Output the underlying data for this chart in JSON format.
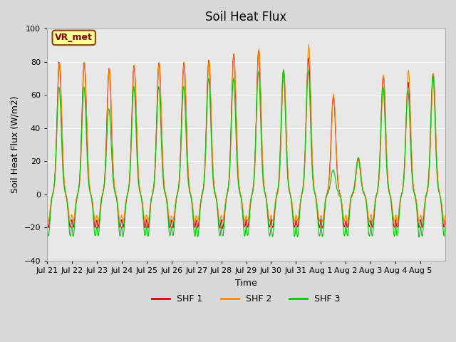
{
  "title": "Soil Heat Flux",
  "xlabel": "Time",
  "ylabel": "Soil Heat Flux (W/m2)",
  "ylim": [
    -40,
    100
  ],
  "yticks": [
    -40,
    -20,
    0,
    20,
    40,
    60,
    80,
    100
  ],
  "fig_bg_color": "#d8d8d8",
  "plot_bg": "#e8e8e8",
  "line_colors": {
    "SHF 1": "#dd0000",
    "SHF 2": "#ff8800",
    "SHF 3": "#00cc00"
  },
  "legend_label": "VR_met",
  "xtick_labels": [
    "Jul 21",
    "Jul 22",
    "Jul 23",
    "Jul 24",
    "Jul 25",
    "Jul 26",
    "Jul 27",
    "Jul 28",
    "Jul 29",
    "Jul 30",
    "Jul 31",
    "Aug 1",
    "Aug 2",
    "Aug 3",
    "Aug 4",
    "Aug 5"
  ],
  "n_days": 16,
  "pts_per_day": 48,
  "day_peaks1": [
    80,
    80,
    76,
    78,
    80,
    80,
    81,
    85,
    87,
    75,
    83,
    60,
    22,
    72,
    68,
    73
  ],
  "day_peaks2": [
    80,
    80,
    76,
    78,
    80,
    80,
    81,
    85,
    88,
    75,
    90,
    60,
    22,
    72,
    75,
    73
  ],
  "day_peaks3": [
    65,
    65,
    52,
    65,
    65,
    65,
    70,
    70,
    74,
    75,
    75,
    15,
    22,
    65,
    62,
    72
  ],
  "trough1": -20.0,
  "trough2": -18.0,
  "trough3": -23.0
}
